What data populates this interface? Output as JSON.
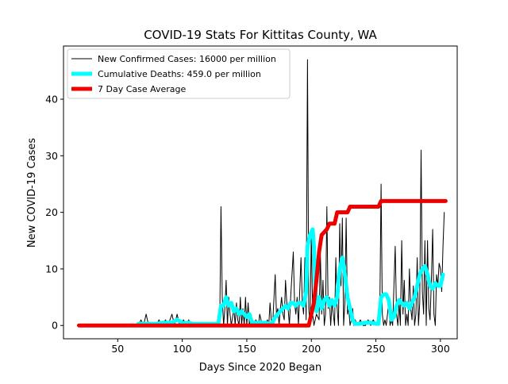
{
  "chart_data": {
    "type": "line",
    "title": "COVID-19 Stats For Kittitas County, WA",
    "xlabel": "Days Since 2020 Began",
    "ylabel": "New COVID-19 Cases",
    "xlim": [
      8,
      313
    ],
    "ylim": [
      -2.35,
      49.4
    ],
    "xticks": [
      50,
      100,
      150,
      200,
      250,
      300
    ],
    "yticks": [
      0,
      10,
      20,
      30,
      40
    ],
    "grid": false,
    "legend_position": "top-left",
    "series": [
      {
        "name": "New Confirmed Cases: 16000 per million",
        "color": "#000000",
        "points": [
          [
            20,
            0
          ],
          [
            66,
            0
          ],
          [
            68,
            1
          ],
          [
            70,
            0
          ],
          [
            72,
            2
          ],
          [
            74,
            0
          ],
          [
            80,
            0
          ],
          [
            82,
            1
          ],
          [
            84,
            0
          ],
          [
            87,
            1
          ],
          [
            89,
            0
          ],
          [
            92,
            2
          ],
          [
            94,
            0
          ],
          [
            96,
            2
          ],
          [
            98,
            0
          ],
          [
            101,
            1
          ],
          [
            103,
            0
          ],
          [
            105,
            1
          ],
          [
            107,
            0
          ],
          [
            126,
            0
          ],
          [
            128,
            1
          ],
          [
            129,
            0
          ],
          [
            130,
            21
          ],
          [
            131,
            5
          ],
          [
            132,
            0
          ],
          [
            133,
            3
          ],
          [
            134,
            8
          ],
          [
            135,
            0
          ],
          [
            136,
            5
          ],
          [
            137,
            2
          ],
          [
            138,
            0
          ],
          [
            140,
            3
          ],
          [
            141,
            0
          ],
          [
            142,
            4
          ],
          [
            143,
            1
          ],
          [
            144,
            0
          ],
          [
            145,
            5
          ],
          [
            146,
            0
          ],
          [
            147,
            3
          ],
          [
            148,
            0
          ],
          [
            149,
            5
          ],
          [
            150,
            0
          ],
          [
            151,
            4
          ],
          [
            152,
            0
          ],
          [
            153,
            2
          ],
          [
            155,
            0
          ],
          [
            157,
            1
          ],
          [
            159,
            0
          ],
          [
            160,
            2
          ],
          [
            162,
            0
          ],
          [
            164,
            0
          ],
          [
            166,
            1
          ],
          [
            167,
            0
          ],
          [
            168,
            4
          ],
          [
            169,
            1
          ],
          [
            170,
            0
          ],
          [
            172,
            9
          ],
          [
            173,
            2
          ],
          [
            174,
            3
          ],
          [
            175,
            0
          ],
          [
            176,
            3
          ],
          [
            177,
            5
          ],
          [
            178,
            2
          ],
          [
            179,
            1
          ],
          [
            180,
            8
          ],
          [
            181,
            4
          ],
          [
            182,
            3
          ],
          [
            183,
            0
          ],
          [
            184,
            5
          ],
          [
            186,
            13
          ],
          [
            187,
            4
          ],
          [
            188,
            2
          ],
          [
            189,
            5
          ],
          [
            190,
            0
          ],
          [
            192,
            12
          ],
          [
            193,
            4
          ],
          [
            194,
            2
          ],
          [
            195,
            12
          ],
          [
            196,
            1
          ],
          [
            197,
            47
          ],
          [
            198,
            3
          ],
          [
            199,
            0
          ],
          [
            200,
            16
          ],
          [
            201,
            2
          ],
          [
            202,
            0
          ],
          [
            204,
            2
          ],
          [
            206,
            1
          ],
          [
            207,
            13
          ],
          [
            208,
            2
          ],
          [
            209,
            8
          ],
          [
            210,
            0
          ],
          [
            211,
            2
          ],
          [
            212,
            21
          ],
          [
            213,
            3
          ],
          [
            214,
            5
          ],
          [
            215,
            0
          ],
          [
            216,
            4
          ],
          [
            217,
            2
          ],
          [
            218,
            0
          ],
          [
            219,
            12
          ],
          [
            220,
            3
          ],
          [
            221,
            0
          ],
          [
            222,
            18
          ],
          [
            223,
            7
          ],
          [
            224,
            19
          ],
          [
            225,
            0
          ],
          [
            226,
            4
          ],
          [
            227,
            19
          ],
          [
            228,
            2
          ],
          [
            229,
            3
          ],
          [
            230,
            0
          ],
          [
            231,
            1
          ],
          [
            232,
            3
          ],
          [
            233,
            0
          ],
          [
            234,
            1
          ],
          [
            236,
            0
          ],
          [
            238,
            1
          ],
          [
            240,
            0
          ],
          [
            242,
            0
          ],
          [
            244,
            1
          ],
          [
            246,
            0
          ],
          [
            248,
            1
          ],
          [
            250,
            0
          ],
          [
            253,
            1
          ],
          [
            254,
            25
          ],
          [
            255,
            2
          ],
          [
            256,
            0
          ],
          [
            257,
            1
          ],
          [
            258,
            0
          ],
          [
            260,
            4
          ],
          [
            261,
            0
          ],
          [
            262,
            1
          ],
          [
            263,
            0
          ],
          [
            265,
            14
          ],
          [
            266,
            2
          ],
          [
            267,
            0
          ],
          [
            268,
            4
          ],
          [
            269,
            0
          ],
          [
            270,
            15
          ],
          [
            271,
            2
          ],
          [
            272,
            8
          ],
          [
            273,
            0
          ],
          [
            274,
            2
          ],
          [
            275,
            0
          ],
          [
            276,
            10
          ],
          [
            277,
            3
          ],
          [
            278,
            1
          ],
          [
            279,
            7
          ],
          [
            280,
            0
          ],
          [
            281,
            2
          ],
          [
            282,
            12
          ],
          [
            283,
            0
          ],
          [
            284,
            4
          ],
          [
            285,
            31
          ],
          [
            286,
            6
          ],
          [
            287,
            2
          ],
          [
            288,
            15
          ],
          [
            289,
            0
          ],
          [
            290,
            15
          ],
          [
            291,
            3
          ],
          [
            292,
            1
          ],
          [
            293,
            8
          ],
          [
            294,
            17
          ],
          [
            295,
            2
          ],
          [
            296,
            0
          ],
          [
            297,
            9
          ],
          [
            298,
            7
          ],
          [
            299,
            11
          ],
          [
            300,
            10
          ],
          [
            301,
            6
          ],
          [
            302,
            14
          ],
          [
            303,
            20
          ]
        ]
      },
      {
        "name": "Cumulative Deaths: 459.0 per million",
        "color": "#00ffff",
        "points": [
          [
            66,
            0.3
          ],
          [
            80,
            0.3
          ],
          [
            85,
            0.5
          ],
          [
            92,
            0.5
          ],
          [
            96,
            1
          ],
          [
            101,
            0.4
          ],
          [
            105,
            0.5
          ],
          [
            108,
            0.3
          ],
          [
            128,
            0.3
          ],
          [
            130,
            3.5
          ],
          [
            132,
            3.5
          ],
          [
            134,
            5
          ],
          [
            136,
            3.5
          ],
          [
            138,
            4
          ],
          [
            140,
            2.5
          ],
          [
            142,
            3
          ],
          [
            144,
            2
          ],
          [
            146,
            2.5
          ],
          [
            148,
            2
          ],
          [
            150,
            1.5
          ],
          [
            152,
            2
          ],
          [
            154,
            0.5
          ],
          [
            160,
            0.5
          ],
          [
            164,
            0.5
          ],
          [
            168,
            0.3
          ],
          [
            170,
            0.5
          ],
          [
            172,
            1.5
          ],
          [
            174,
            2
          ],
          [
            176,
            2.5
          ],
          [
            178,
            3
          ],
          [
            180,
            3.5
          ],
          [
            182,
            3
          ],
          [
            184,
            4
          ],
          [
            186,
            4
          ],
          [
            188,
            3.5
          ],
          [
            190,
            4
          ],
          [
            192,
            4
          ],
          [
            194,
            3.5
          ],
          [
            196,
            6
          ],
          [
            197,
            14
          ],
          [
            199,
            16
          ],
          [
            201,
            17
          ],
          [
            202,
            14
          ],
          [
            203,
            8
          ],
          [
            204,
            2.5
          ],
          [
            205,
            4
          ],
          [
            206,
            5
          ],
          [
            208,
            3
          ],
          [
            210,
            4.5
          ],
          [
            212,
            5
          ],
          [
            214,
            3.5
          ],
          [
            216,
            4.5
          ],
          [
            218,
            3.5
          ],
          [
            220,
            5
          ],
          [
            222,
            10
          ],
          [
            224,
            12
          ],
          [
            226,
            9
          ],
          [
            228,
            5
          ],
          [
            230,
            3
          ],
          [
            232,
            1
          ],
          [
            234,
            0.3
          ],
          [
            238,
            0.3
          ],
          [
            242,
            0.5
          ],
          [
            246,
            0.5
          ],
          [
            250,
            0.3
          ],
          [
            252,
            0.3
          ],
          [
            254,
            5
          ],
          [
            256,
            5.5
          ],
          [
            258,
            5.5
          ],
          [
            260,
            4.5
          ],
          [
            262,
            1
          ],
          [
            264,
            1.5
          ],
          [
            266,
            3.5
          ],
          [
            268,
            4.5
          ],
          [
            270,
            4
          ],
          [
            272,
            3.5
          ],
          [
            274,
            4
          ],
          [
            276,
            3
          ],
          [
            278,
            4
          ],
          [
            280,
            5
          ],
          [
            282,
            7
          ],
          [
            284,
            9
          ],
          [
            286,
            10
          ],
          [
            288,
            10.5
          ],
          [
            290,
            9
          ],
          [
            292,
            7
          ],
          [
            294,
            6.5
          ],
          [
            296,
            7.5
          ],
          [
            298,
            7
          ],
          [
            300,
            7
          ],
          [
            302,
            9
          ]
        ]
      },
      {
        "name": "7 Day Case Average",
        "color": "#ee0000",
        "points": [
          [
            20,
            0
          ],
          [
            198,
            0
          ],
          [
            200,
            2
          ],
          [
            202,
            4
          ],
          [
            204,
            8
          ],
          [
            206,
            13
          ],
          [
            208,
            16
          ],
          [
            212,
            17
          ],
          [
            214,
            18
          ],
          [
            218,
            18
          ],
          [
            220,
            20
          ],
          [
            228,
            20
          ],
          [
            230,
            21
          ],
          [
            252,
            21
          ],
          [
            254,
            22
          ],
          [
            304,
            22
          ]
        ]
      }
    ]
  }
}
